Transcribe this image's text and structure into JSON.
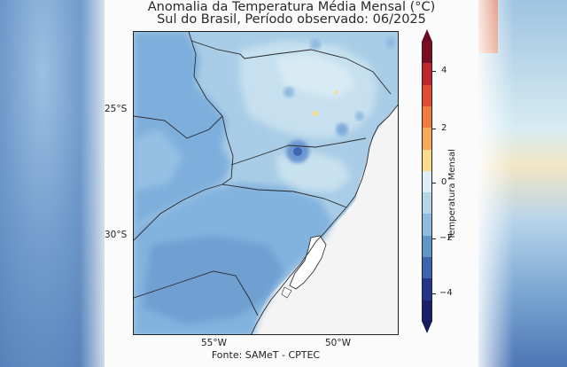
{
  "title": {
    "line1": "Anomalia da Temperatura Média Mensal (°C)",
    "line2": "Sul do Brasil, Período observado: 06/2025"
  },
  "map": {
    "lat_labels": [
      "25°S",
      "30°S"
    ],
    "lon_labels": [
      "55°W",
      "50°W"
    ],
    "source": "Fonte: SAMeT - CPTEC"
  },
  "colorbar": {
    "label": "Temperatura Mensal",
    "ticks": [
      "4",
      "2",
      "0",
      "−2",
      "−4"
    ],
    "colors": [
      "#7d0c25",
      "#c0262d",
      "#e44a32",
      "#f47a3f",
      "#f8a957",
      "#f8dc8c",
      "#dceef6",
      "#b6d5ea",
      "#8fbcde",
      "#6295c8",
      "#3c64b0",
      "#23348f",
      "#1b1f6b"
    ],
    "over_color": "#6c0a22",
    "under_color": "#161a5a"
  }
}
